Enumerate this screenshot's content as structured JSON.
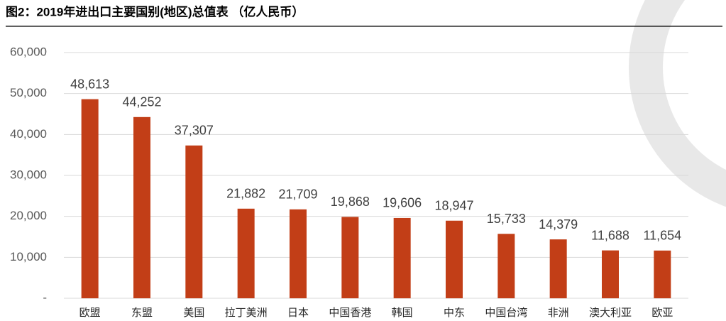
{
  "chart_data": {
    "type": "bar",
    "title": "图2：2019年进出口主要国别(地区)总值表 （亿人民币）",
    "categories": [
      "欧盟",
      "东盟",
      "美国",
      "拉丁美洲",
      "日本",
      "中国香港",
      "韩国",
      "中东",
      "中国台湾",
      "非洲",
      "澳大利亚",
      "欧亚"
    ],
    "values": [
      48613,
      44252,
      37307,
      21882,
      21709,
      19868,
      19606,
      18947,
      15733,
      14379,
      11688,
      11654
    ],
    "value_labels": [
      "48,613",
      "44,252",
      "37,307",
      "21,882",
      "21,709",
      "19,868",
      "19,606",
      "18,947",
      "15,733",
      "14,379",
      "11,688",
      "11,654"
    ],
    "color": "#c23e17",
    "ylim": [
      0,
      60000
    ],
    "yticks": [
      {
        "value": 0,
        "label": "-"
      },
      {
        "value": 10000,
        "label": "10,000"
      },
      {
        "value": 20000,
        "label": "20,000"
      },
      {
        "value": 30000,
        "label": "30,000"
      },
      {
        "value": 40000,
        "label": "40,000"
      },
      {
        "value": 50000,
        "label": "50,000"
      },
      {
        "value": 60000,
        "label": "60,000"
      }
    ],
    "grid": true
  }
}
